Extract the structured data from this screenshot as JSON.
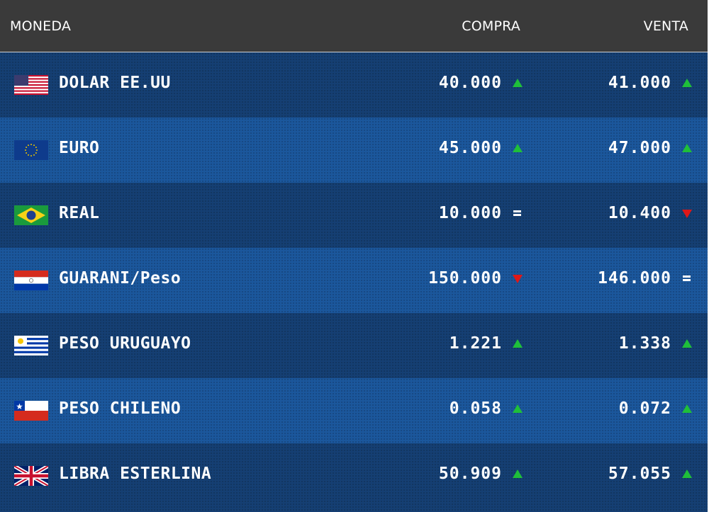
{
  "header": {
    "moneda": "MONEDA",
    "compra": "COMPRA",
    "venta": "VENTA"
  },
  "colors": {
    "up": "#1fbf3a",
    "down": "#e01818",
    "header_bg": "#3a3a3a",
    "row_dark": "#153f73",
    "row_light": "#1b579c"
  },
  "rows": [
    {
      "flag": "usa-flag-icon",
      "name": "DOLAR EE.UU",
      "compra": "40.000",
      "compra_trend": "up",
      "venta": "41.000",
      "venta_trend": "up"
    },
    {
      "flag": "eu-flag-icon",
      "name": "EURO",
      "compra": "45.000",
      "compra_trend": "up",
      "venta": "47.000",
      "venta_trend": "up"
    },
    {
      "flag": "brazil-flag-icon",
      "name": "REAL",
      "compra": "10.000",
      "compra_trend": "equal",
      "venta": "10.400",
      "venta_trend": "down"
    },
    {
      "flag": "paraguay-flag-icon",
      "name": "GUARANI/Peso",
      "compra": "150.000",
      "compra_trend": "down",
      "venta": "146.000",
      "venta_trend": "equal"
    },
    {
      "flag": "uruguay-flag-icon",
      "name": "PESO URUGUAYO",
      "compra": "1.221",
      "compra_trend": "up",
      "venta": "1.338",
      "venta_trend": "up"
    },
    {
      "flag": "chile-flag-icon",
      "name": "PESO CHILENO",
      "compra": "0.058",
      "compra_trend": "up",
      "venta": "0.072",
      "venta_trend": "up"
    },
    {
      "flag": "uk-flag-icon",
      "name": "LIBRA ESTERLINA",
      "compra": "50.909",
      "compra_trend": "up",
      "venta": "57.055",
      "venta_trend": "up"
    }
  ]
}
